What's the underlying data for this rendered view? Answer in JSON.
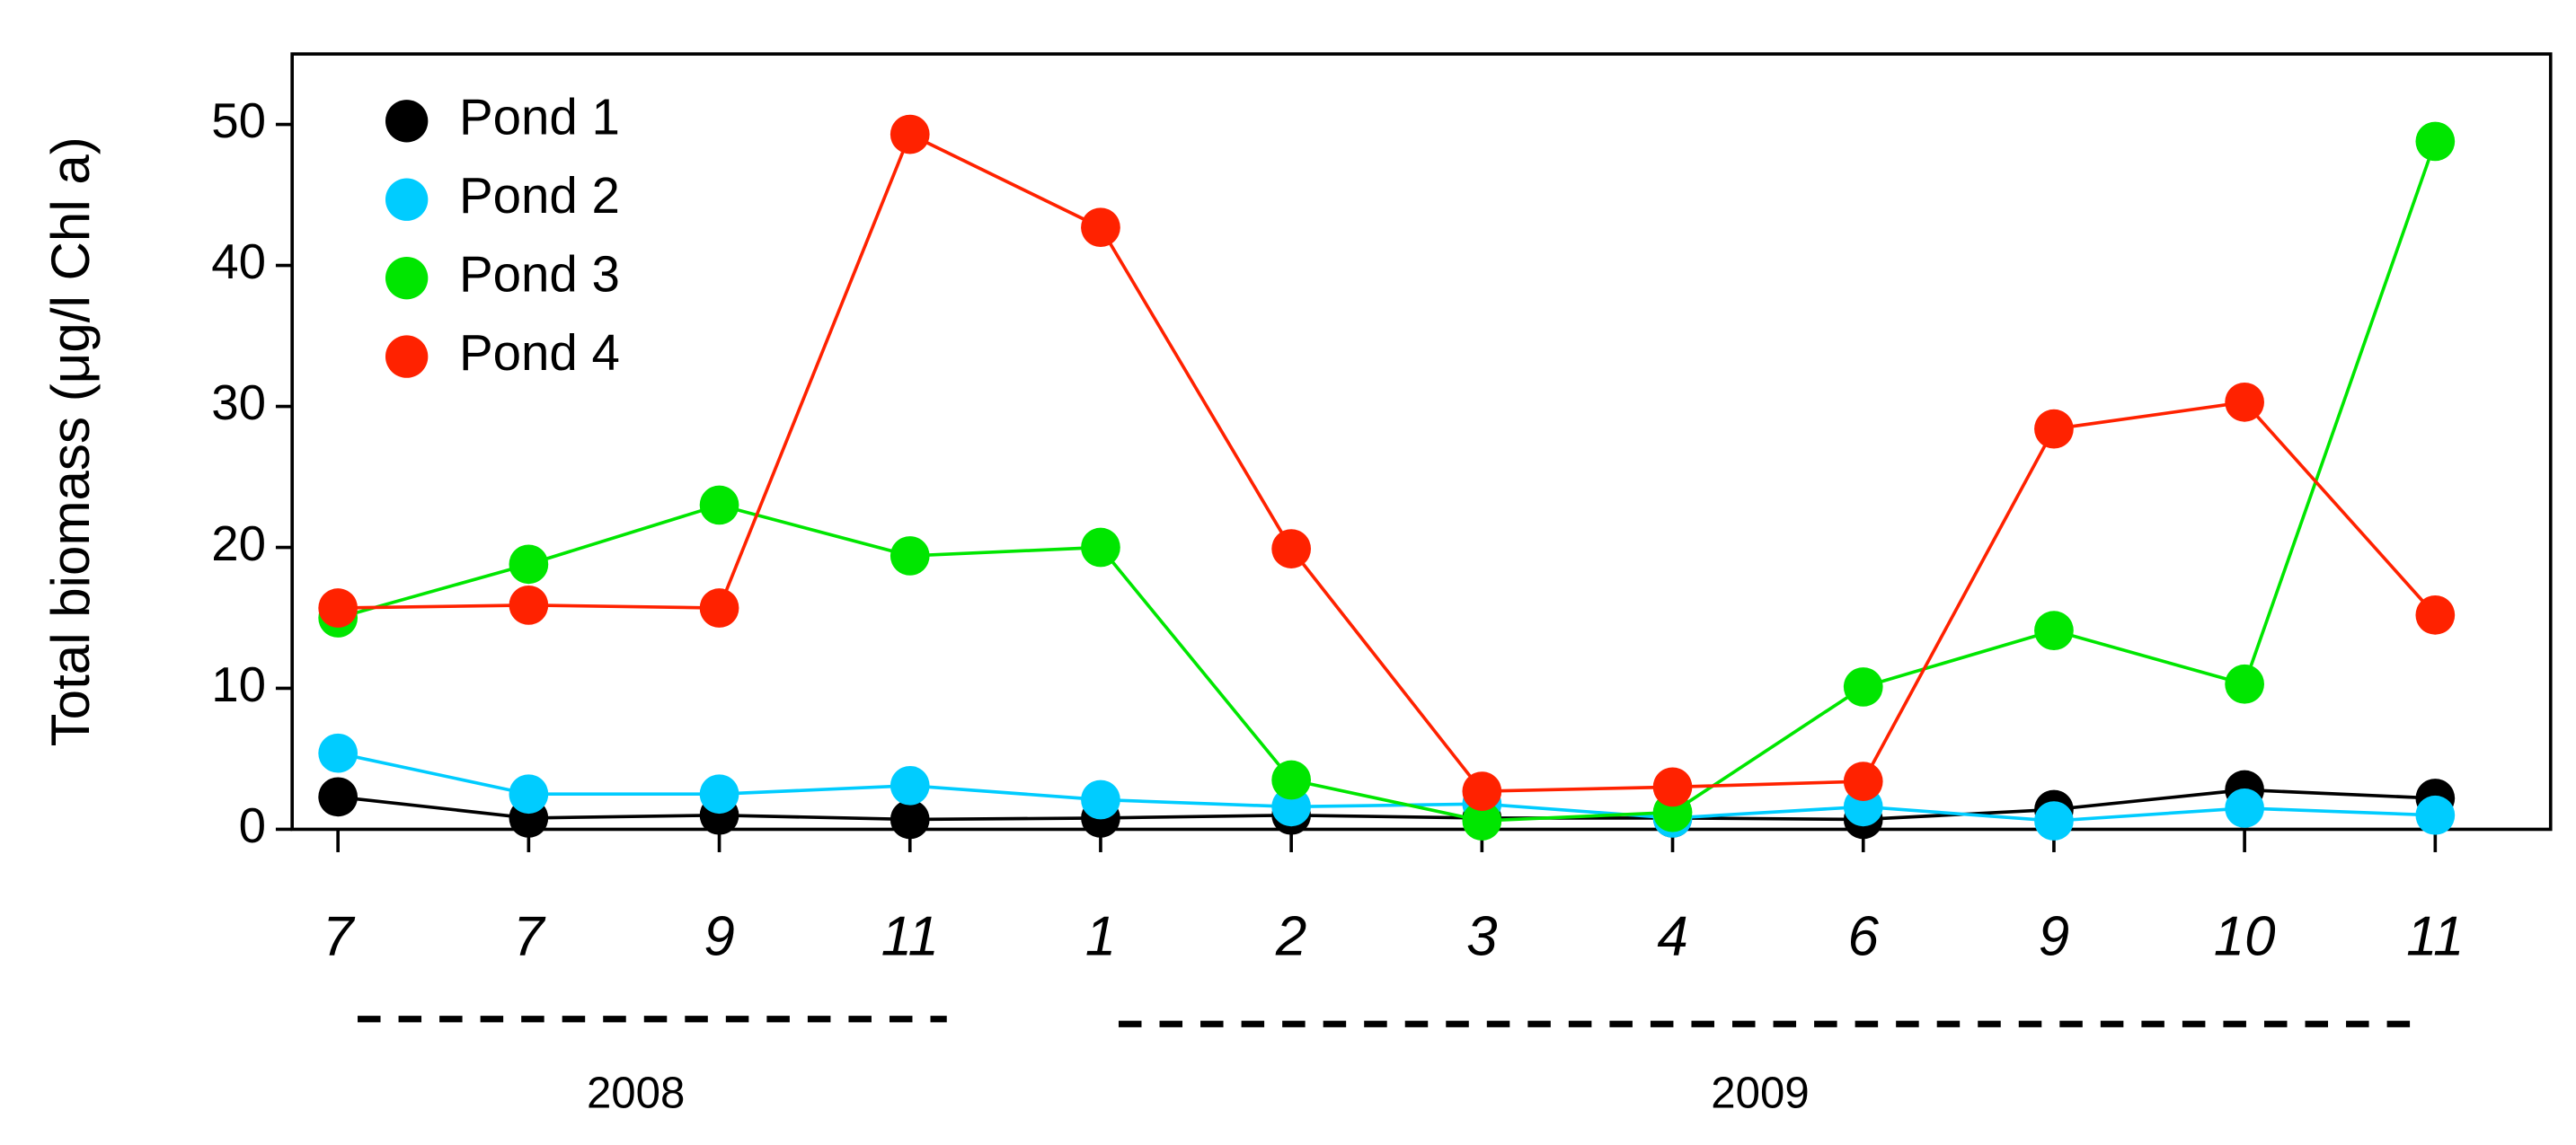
{
  "chart_data": {
    "type": "line",
    "y_label": "Total biomass (μg/l Chl a)",
    "categories": [
      "7",
      "7",
      "9",
      "11",
      "1",
      "2",
      "3",
      "4",
      "6",
      "9",
      "10",
      "11"
    ],
    "year_labels": [
      "2008",
      "2009"
    ],
    "series": [
      {
        "name": "Pond 1",
        "color": "#000000",
        "values": [
          2.3,
          0.8,
          1.0,
          0.7,
          0.8,
          1.0,
          0.8,
          0.8,
          0.7,
          1.4,
          2.8,
          2.2
        ]
      },
      {
        "name": "Pond 2",
        "color": "#00ccff",
        "values": [
          5.4,
          2.5,
          2.5,
          3.1,
          2.1,
          1.6,
          1.8,
          0.8,
          1.6,
          0.6,
          1.5,
          1.0
        ]
      },
      {
        "name": "Pond 3",
        "color": "#00e600",
        "values": [
          15.0,
          18.8,
          23.0,
          19.4,
          20.0,
          3.5,
          0.6,
          1.2,
          10.1,
          14.1,
          10.3,
          48.8
        ]
      },
      {
        "name": "Pond 4",
        "color": "#ff2200",
        "values": [
          15.7,
          15.9,
          15.7,
          49.3,
          42.7,
          19.9,
          2.7,
          3.0,
          3.4,
          28.4,
          30.3,
          15.2
        ]
      }
    ],
    "ylim": [
      0,
      55
    ],
    "yticks": [
      0,
      10,
      20,
      30,
      40,
      50
    ],
    "legend": "upper-left",
    "grid": false
  }
}
